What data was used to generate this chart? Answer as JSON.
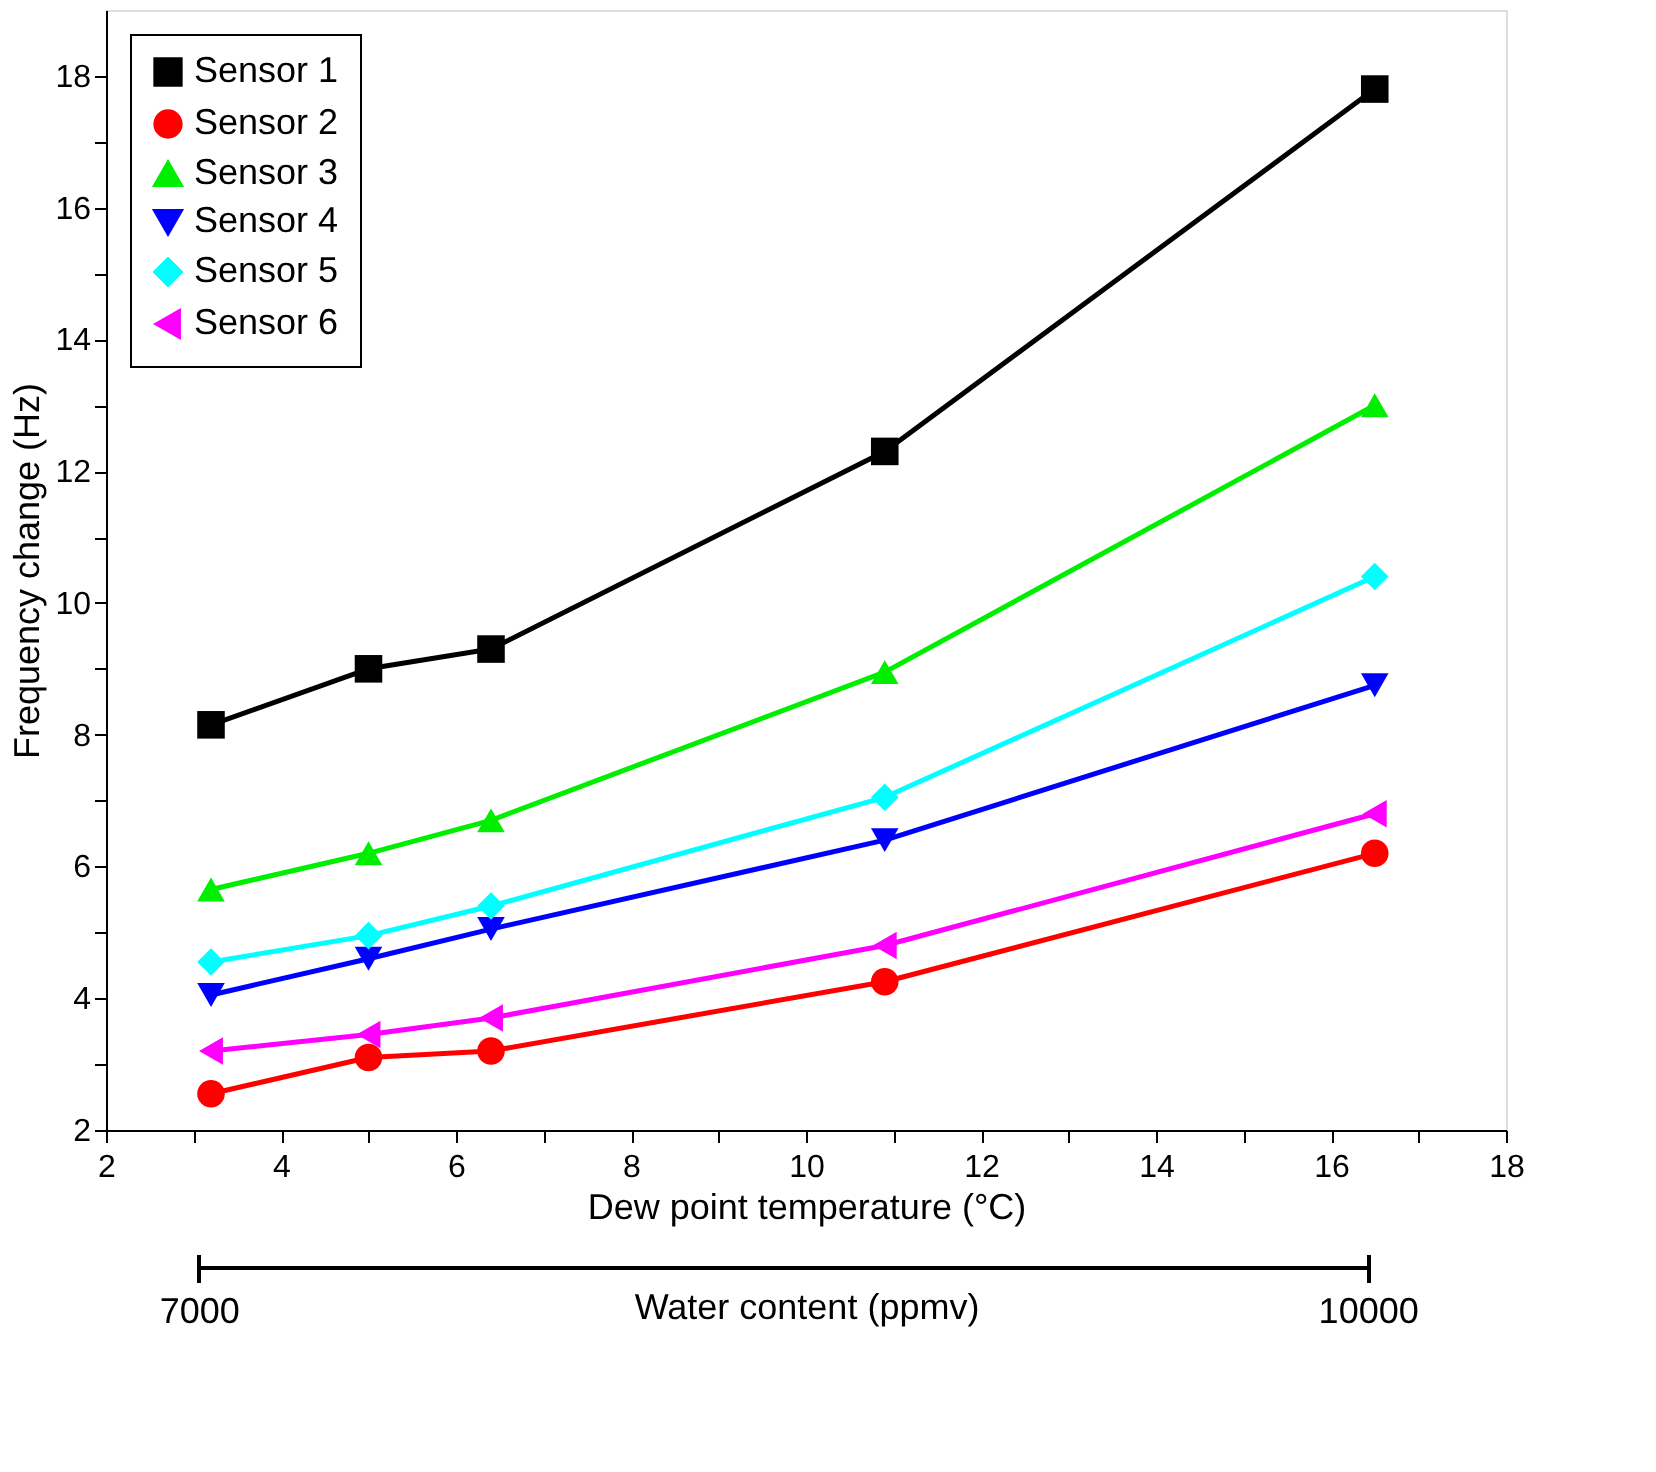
{
  "chart_data": {
    "type": "line",
    "xlabel": "Dew point temperature (°C)",
    "ylabel": "Frequency change (Hz)",
    "x2label": "Water content (ppmv)",
    "x": [
      3.2,
      5,
      6.4,
      10.9,
      16.5
    ],
    "series": [
      {
        "name": "Sensor 1",
        "color": "#000000",
        "marker": "square",
        "values": [
          8.15,
          9.0,
          9.3,
          12.3,
          17.8
        ]
      },
      {
        "name": "Sensor 2",
        "color": "#ff0000",
        "marker": "circle",
        "values": [
          2.55,
          3.1,
          3.2,
          4.25,
          6.2
        ]
      },
      {
        "name": "Sensor 3",
        "color": "#00ee00",
        "marker": "triangle",
        "values": [
          5.65,
          6.2,
          6.7,
          8.95,
          13.0
        ]
      },
      {
        "name": "Sensor 4",
        "color": "#0000ff",
        "marker": "triangle-down",
        "values": [
          4.05,
          4.6,
          5.05,
          6.4,
          8.75
        ]
      },
      {
        "name": "Sensor 5",
        "color": "#00ffff",
        "marker": "diamond",
        "values": [
          4.55,
          4.95,
          5.4,
          7.05,
          10.4
        ]
      },
      {
        "name": "Sensor 6",
        "color": "#ff00ff",
        "marker": "triangle-left",
        "values": [
          3.2,
          3.45,
          3.7,
          4.8,
          6.8
        ]
      }
    ],
    "xlim": [
      2,
      18
    ],
    "xticks": [
      2,
      {
        "value": 3,
        "label": null
      },
      4,
      {
        "value": 5,
        "label": null
      },
      6,
      {
        "value": 7,
        "label": null
      },
      8,
      {
        "value": 9,
        "label": null
      },
      10,
      {
        "value": 11,
        "label": null
      },
      12,
      {
        "value": 13,
        "label": null
      },
      14,
      {
        "value": 15,
        "label": null
      },
      16,
      {
        "value": 17,
        "label": null
      },
      18
    ],
    "ylim": [
      2,
      19
    ],
    "yticks": [
      2,
      {
        "value": 3,
        "label": null
      },
      4,
      {
        "value": 5,
        "label": null
      },
      6,
      {
        "value": 7,
        "label": null
      },
      8,
      {
        "value": 9,
        "label": null
      },
      10,
      {
        "value": 11,
        "label": null
      },
      12,
      {
        "value": 13,
        "label": null
      },
      14,
      {
        "value": 15,
        "label": null
      },
      16,
      {
        "value": 17,
        "label": null
      },
      18
    ],
    "x2lim": [
      6762,
      10355
    ],
    "x2ticks": [
      7000,
      10000
    ],
    "grid": false,
    "legend": "top left",
    "line_style": "solid"
  }
}
